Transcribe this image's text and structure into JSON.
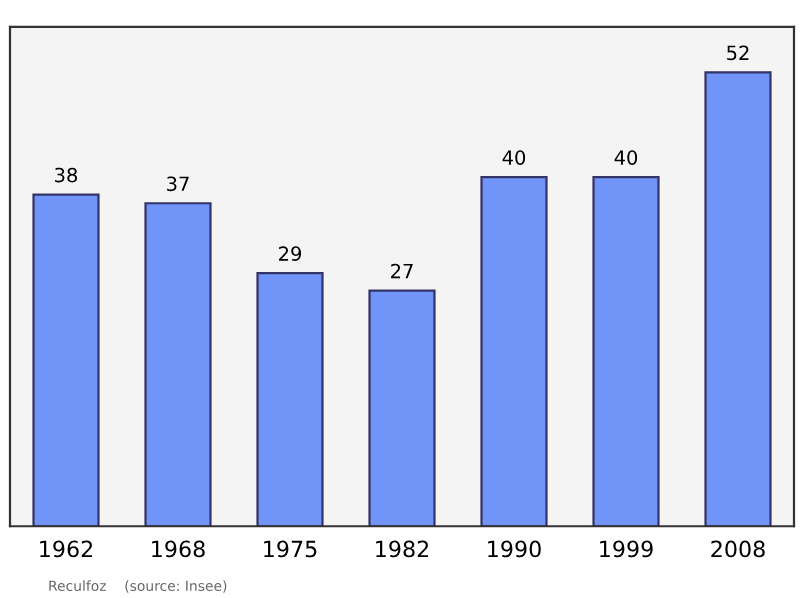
{
  "chart_data": {
    "type": "bar",
    "categories": [
      "1962",
      "1968",
      "1975",
      "1982",
      "1990",
      "1999",
      "2008"
    ],
    "values": [
      38,
      37,
      29,
      27,
      40,
      40,
      52
    ],
    "color": "#7094f7",
    "data_labels": true,
    "annotations": [
      "Reculfoz    (source: Insee)"
    ]
  }
}
